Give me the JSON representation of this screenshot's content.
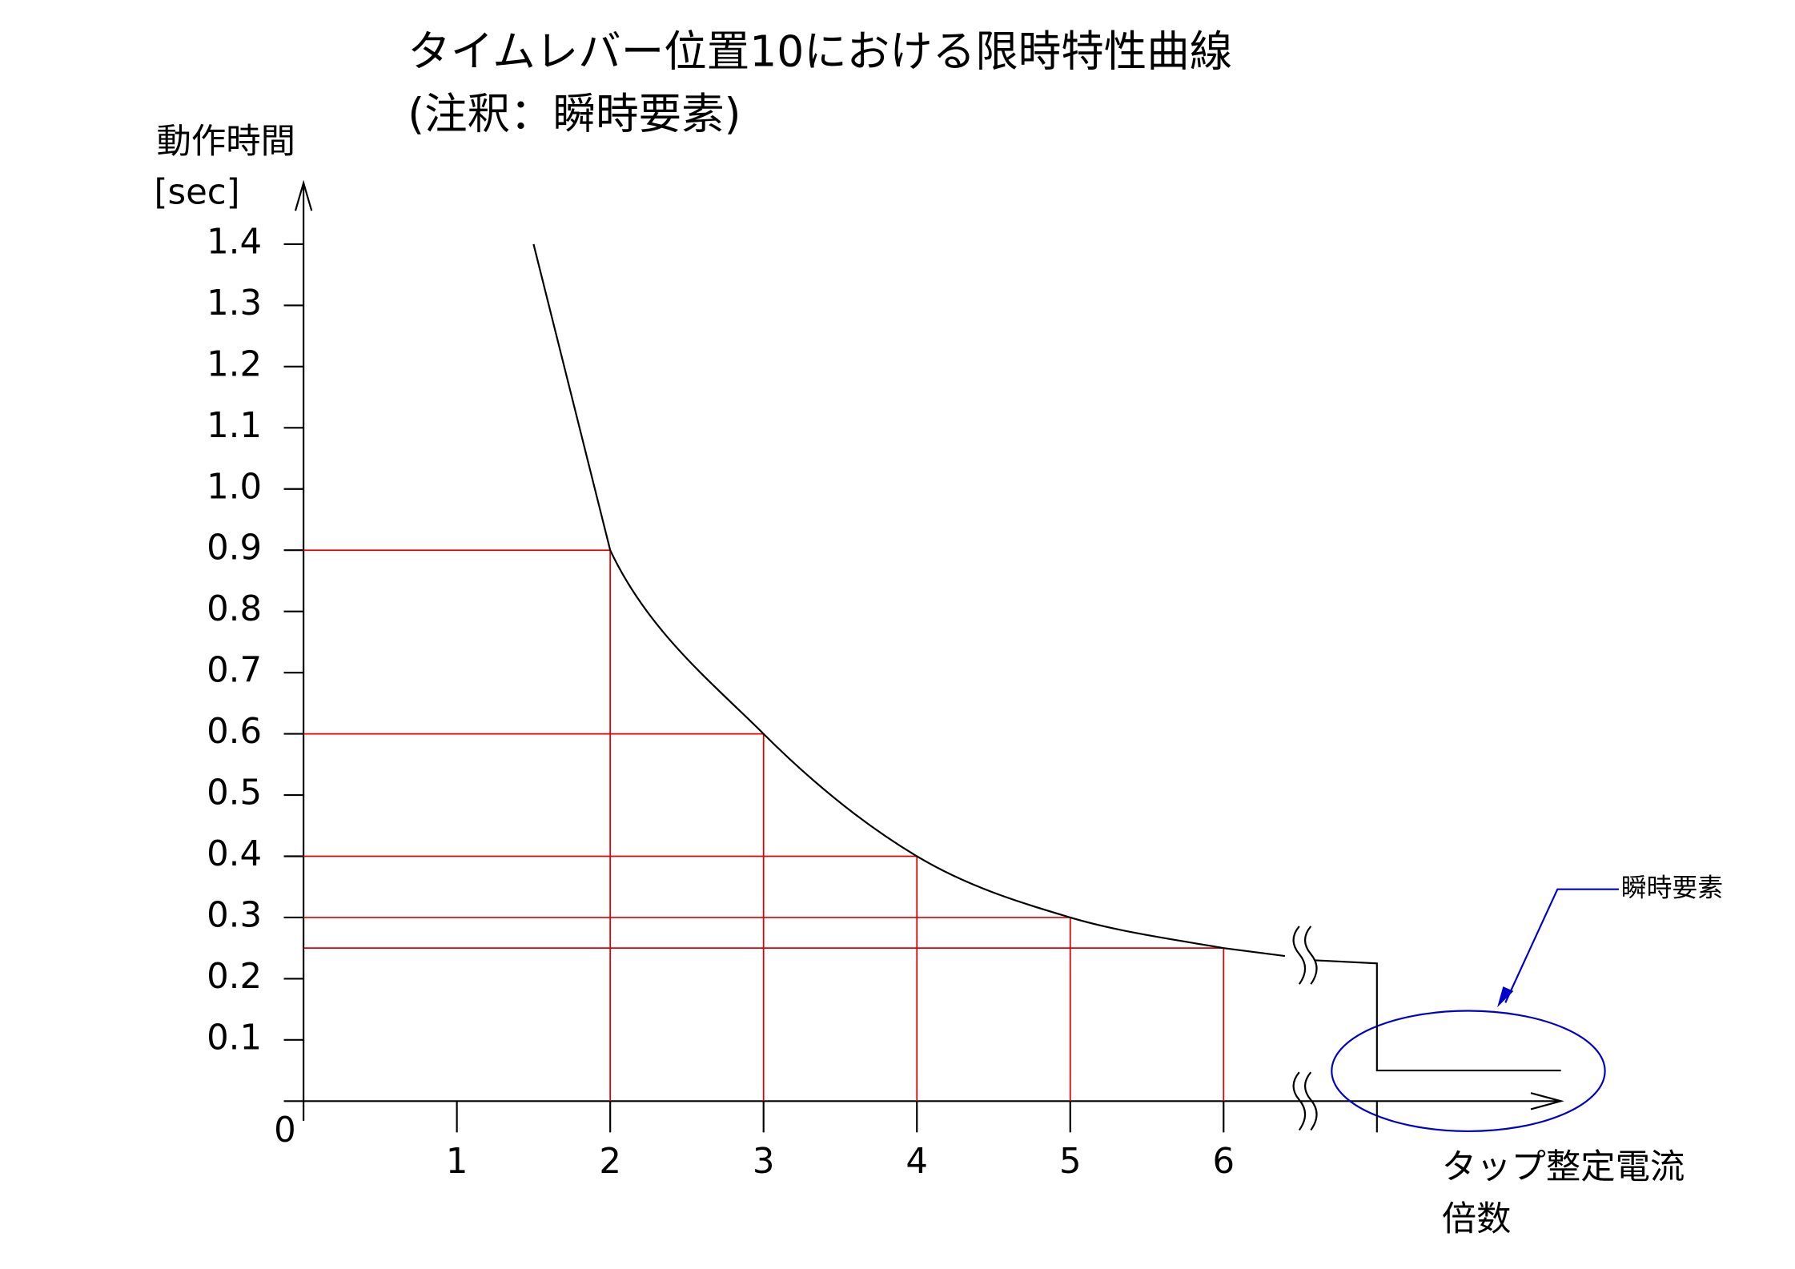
{
  "chart_data": {
    "type": "line",
    "title": [
      "タイムレバー位置10における限時特性曲線",
      "(注釈：瞬時要素)"
    ],
    "y_label": [
      "動作時間",
      "[sec]"
    ],
    "x_label": [
      "タップ整定電流",
      "倍数"
    ],
    "annotation": "瞬時要素",
    "xlim": [
      0,
      8.2
    ],
    "ylim": [
      0,
      1.5
    ],
    "xticks": [
      0,
      1,
      2,
      3,
      4,
      5,
      6,
      {
        "value": 7,
        "label": ""
      }
    ],
    "yticks": [
      0.1,
      0.2,
      0.3,
      0.4,
      0.5,
      0.6,
      0.7,
      0.8,
      0.9,
      {
        "value": 1,
        "label": "1.0"
      },
      1.1,
      1.2,
      1.3,
      1.4
    ],
    "series": [
      {
        "color": "#000000",
        "x": [
          1.5,
          2,
          3,
          4,
          5,
          6,
          6.4
        ],
        "values": [
          1.4,
          0.9,
          0.6,
          0.4,
          0.3,
          0.25,
          0.237
        ]
      },
      {
        "color": "#000000",
        "x": [
          6.6,
          7,
          7,
          8.2
        ],
        "values": [
          0.23,
          0.225,
          0.05,
          0.05
        ]
      }
    ],
    "reference_points": {
      "color": "#e00000",
      "x": [
        2,
        3,
        4,
        5,
        6
      ],
      "values": [
        0.9,
        0.6,
        0.4,
        0.3,
        0.25
      ]
    },
    "annotation_color": "#0000cc"
  }
}
